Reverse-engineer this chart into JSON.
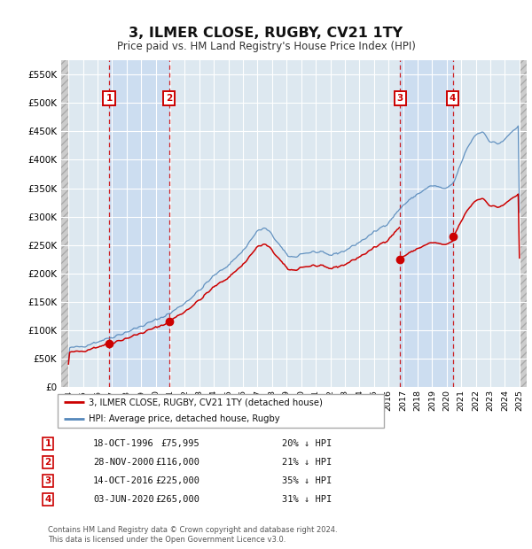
{
  "title": "3, ILMER CLOSE, RUGBY, CV21 1TY",
  "subtitle": "Price paid vs. HM Land Registry's House Price Index (HPI)",
  "ylim": [
    0,
    575000
  ],
  "yticks": [
    0,
    50000,
    100000,
    150000,
    200000,
    250000,
    300000,
    350000,
    400000,
    450000,
    500000,
    550000
  ],
  "xlim_start": 1993.5,
  "xlim_end": 2025.5,
  "bg_color": "#ffffff",
  "plot_bg_color": "#dde8f0",
  "grid_color": "#ffffff",
  "highlight_color": "#ccddf0",
  "legend_entries": [
    "3, ILMER CLOSE, RUGBY, CV21 1TY (detached house)",
    "HPI: Average price, detached house, Rugby"
  ],
  "red_color": "#cc0000",
  "blue_color": "#5588bb",
  "sale_points": [
    {
      "label": "1",
      "date": "18-OCT-1996",
      "price": 75995,
      "x": 1996.79
    },
    {
      "label": "2",
      "date": "28-NOV-2000",
      "price": 116000,
      "x": 2000.91
    },
    {
      "label": "3",
      "date": "14-OCT-2016",
      "price": 225000,
      "x": 2016.79
    },
    {
      "label": "4",
      "date": "03-JUN-2020",
      "price": 265000,
      "x": 2020.42
    }
  ],
  "table_rows": [
    [
      "1",
      "18-OCT-1996",
      "£75,995",
      "20% ↓ HPI"
    ],
    [
      "2",
      "28-NOV-2000",
      "£116,000",
      "21% ↓ HPI"
    ],
    [
      "3",
      "14-OCT-2016",
      "£225,000",
      "35% ↓ HPI"
    ],
    [
      "4",
      "03-JUN-2020",
      "£265,000",
      "31% ↓ HPI"
    ]
  ],
  "footer": "Contains HM Land Registry data © Crown copyright and database right 2024.\nThis data is licensed under the Open Government Licence v3.0."
}
